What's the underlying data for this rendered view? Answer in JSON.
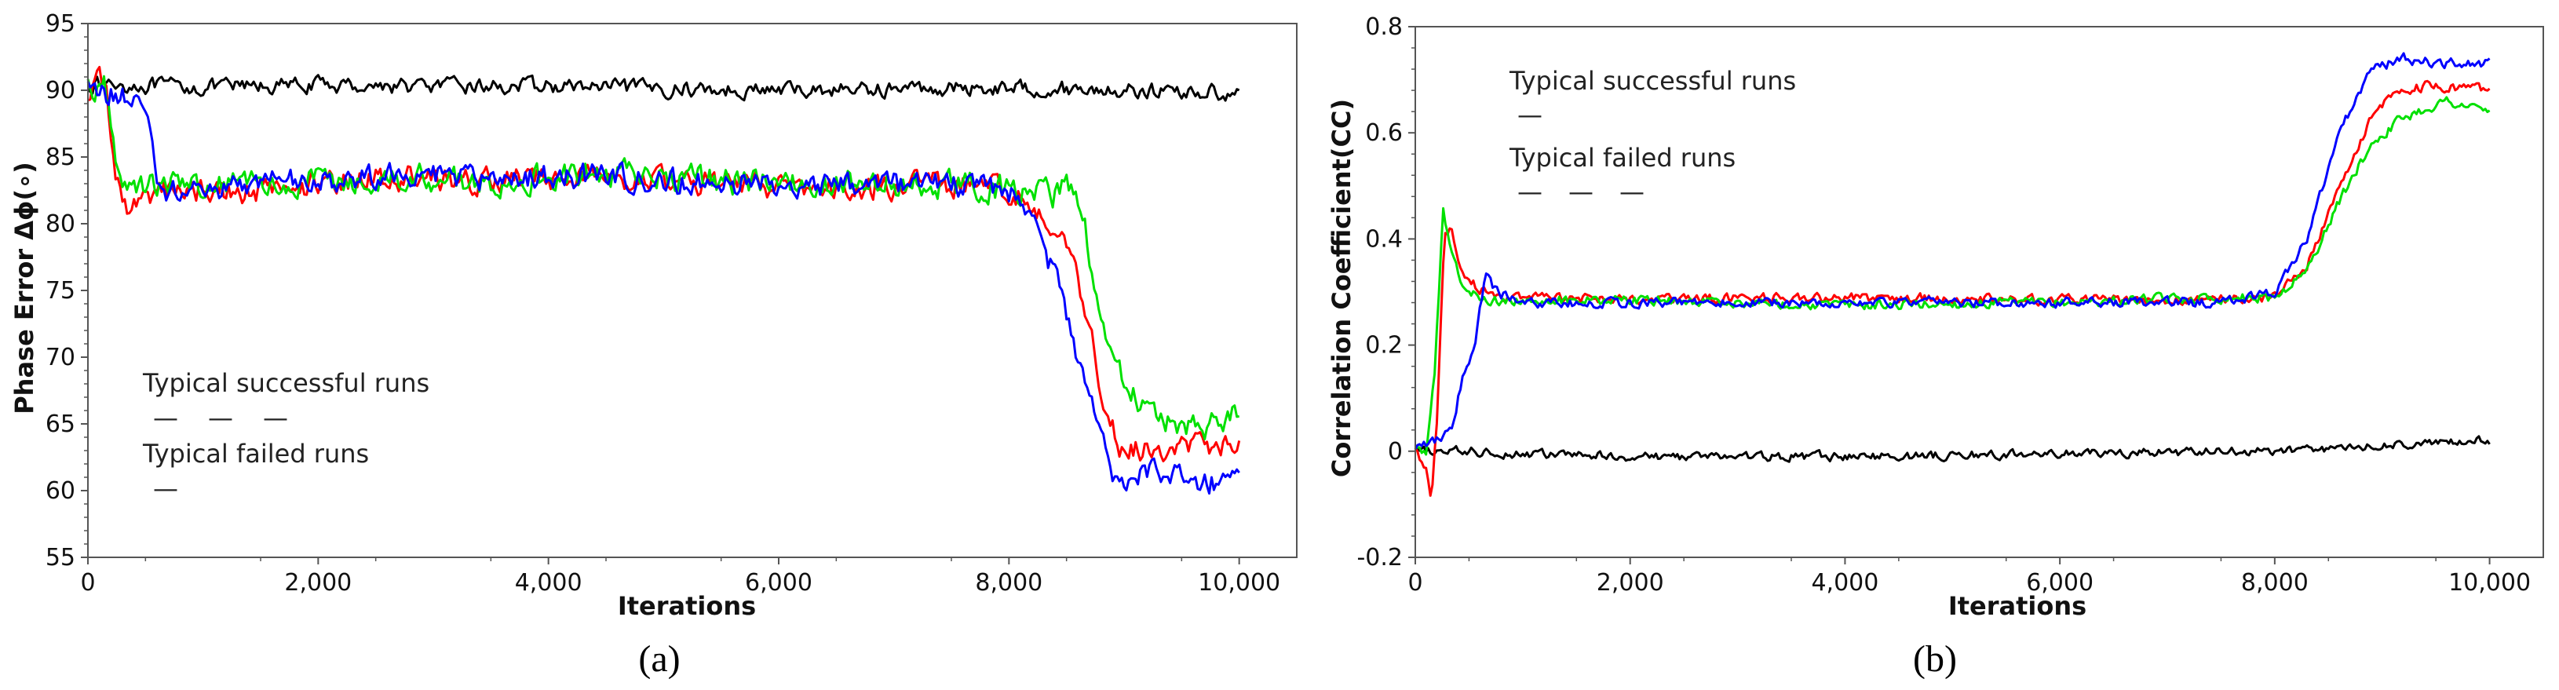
{
  "chart_data": [
    {
      "type": "line",
      "caption": "(a)",
      "xlabel": "Iterations",
      "ylabel": "Phase Error Δϕ(∘)",
      "xlim": [
        0,
        10500
      ],
      "ylim": [
        55,
        95
      ],
      "xticks": [
        0,
        2000,
        4000,
        6000,
        8000,
        10000
      ],
      "xtick_labels": [
        "0",
        "2,000",
        "4,000",
        "6,000",
        "8,000",
        "10,000"
      ],
      "yticks": [
        55,
        60,
        65,
        70,
        75,
        80,
        85,
        90,
        95
      ],
      "ytick_labels": [
        "55",
        "60",
        "65",
        "70",
        "75",
        "80",
        "85",
        "90",
        "95"
      ],
      "legend": {
        "successful_label": "Typical successful runs",
        "successful_marks": [
          "—",
          "—",
          "—"
        ],
        "failed_label": "Typical failed runs",
        "failed_mark": "—"
      },
      "series": [
        {
          "name": "failed-black",
          "color": "#000000",
          "noise": 0.55,
          "points": [
            [
              0,
              90.5
            ],
            [
              1000,
              90.2
            ],
            [
              2000,
              90.4
            ],
            [
              3000,
              90.3
            ],
            [
              4000,
              90.3
            ],
            [
              5000,
              90.1
            ],
            [
              6000,
              90.0
            ],
            [
              7000,
              90.1
            ],
            [
              8000,
              90.2
            ],
            [
              9000,
              90.0
            ],
            [
              10000,
              89.8
            ]
          ]
        },
        {
          "name": "successful-red",
          "color": "#ff0000",
          "noise": 0.9,
          "points": [
            [
              0,
              90
            ],
            [
              150,
              91
            ],
            [
              230,
              84
            ],
            [
              340,
              81
            ],
            [
              600,
              82.5
            ],
            [
              1500,
              82.5
            ],
            [
              2500,
              83.5
            ],
            [
              3500,
              83.2
            ],
            [
              4500,
              83.6
            ],
            [
              5500,
              83
            ],
            [
              6500,
              82.6
            ],
            [
              7500,
              83
            ],
            [
              8000,
              82.5
            ],
            [
              8400,
              80
            ],
            [
              8600,
              76
            ],
            [
              8800,
              68
            ],
            [
              8950,
              63.5
            ],
            [
              9200,
              63
            ],
            [
              9600,
              63.5
            ],
            [
              10000,
              63.2
            ]
          ]
        },
        {
          "name": "successful-green",
          "color": "#00e000",
          "noise": 1.0,
          "points": [
            [
              0,
              90
            ],
            [
              150,
              90.5
            ],
            [
              230,
              86
            ],
            [
              300,
              83
            ],
            [
              600,
              83
            ],
            [
              1500,
              83
            ],
            [
              2500,
              83.5
            ],
            [
              3500,
              83.2
            ],
            [
              4500,
              83.8
            ],
            [
              5500,
              83.2
            ],
            [
              6500,
              83
            ],
            [
              7500,
              83
            ],
            [
              8000,
              82.5
            ],
            [
              8400,
              82
            ],
            [
              8500,
              84
            ],
            [
              8650,
              80
            ],
            [
              8800,
              73
            ],
            [
              9000,
              68
            ],
            [
              9200,
              66
            ],
            [
              9500,
              65
            ],
            [
              9800,
              65
            ],
            [
              10000,
              66.5
            ]
          ]
        },
        {
          "name": "successful-blue",
          "color": "#0000ff",
          "noise": 0.9,
          "points": [
            [
              0,
              90
            ],
            [
              300,
              89.5
            ],
            [
              500,
              88.5
            ],
            [
              620,
              83
            ],
            [
              700,
              82.5
            ],
            [
              1500,
              83
            ],
            [
              2500,
              83.5
            ],
            [
              3500,
              83.5
            ],
            [
              4500,
              83.5
            ],
            [
              5500,
              83
            ],
            [
              6500,
              83
            ],
            [
              7500,
              82.8
            ],
            [
              8000,
              82.5
            ],
            [
              8200,
              80
            ],
            [
              8400,
              76
            ],
            [
              8600,
              70
            ],
            [
              8800,
              64
            ],
            [
              8900,
              60.5
            ],
            [
              9100,
              61.5
            ],
            [
              9500,
              61
            ],
            [
              10000,
              60.5
            ]
          ]
        }
      ]
    },
    {
      "type": "line",
      "caption": "(b)",
      "xlabel": "Iterations",
      "ylabel": "Correlation Coefficient(CC)",
      "xlim": [
        0,
        10500
      ],
      "ylim": [
        -0.2,
        0.8
      ],
      "xticks": [
        0,
        2000,
        4000,
        6000,
        8000,
        10000
      ],
      "xtick_labels": [
        "0",
        "2,000",
        "4,000",
        "6,000",
        "8,000",
        "10,000"
      ],
      "yticks": [
        -0.2,
        0,
        0.2,
        0.4,
        0.6,
        0.8
      ],
      "ytick_labels": [
        "-0.2",
        "0",
        "0.2",
        "0.4",
        "0.6",
        "0.8"
      ],
      "legend": {
        "successful_label": "Typical successful runs",
        "successful_mark": "—",
        "failed_label": "Typical failed runs",
        "failed_marks": [
          "—",
          "—",
          "—"
        ]
      },
      "series": [
        {
          "name": "successful-black",
          "color": "#000000",
          "noise": 0.008,
          "points": [
            [
              0,
              0.0
            ],
            [
              500,
              0.0
            ],
            [
              1000,
              -0.005
            ],
            [
              2000,
              -0.01
            ],
            [
              4000,
              -0.01
            ],
            [
              6000,
              -0.005
            ],
            [
              8000,
              0.0
            ],
            [
              9000,
              0.01
            ],
            [
              10000,
              0.02
            ]
          ]
        },
        {
          "name": "failed-red",
          "color": "#ff0000",
          "noise": 0.009,
          "points": [
            [
              0,
              0.0
            ],
            [
              100,
              -0.03
            ],
            [
              150,
              -0.1
            ],
            [
              200,
              0.05
            ],
            [
              270,
              0.4
            ],
            [
              330,
              0.42
            ],
            [
              450,
              0.33
            ],
            [
              700,
              0.29
            ],
            [
              2000,
              0.285
            ],
            [
              4000,
              0.29
            ],
            [
              6000,
              0.285
            ],
            [
              7500,
              0.285
            ],
            [
              8000,
              0.29
            ],
            [
              8300,
              0.35
            ],
            [
              8600,
              0.5
            ],
            [
              8900,
              0.63
            ],
            [
              9100,
              0.68
            ],
            [
              9500,
              0.69
            ],
            [
              10000,
              0.68
            ]
          ]
        },
        {
          "name": "failed-green",
          "color": "#00e000",
          "noise": 0.009,
          "points": [
            [
              0,
              0.0
            ],
            [
              100,
              0.0
            ],
            [
              180,
              0.15
            ],
            [
              260,
              0.45
            ],
            [
              330,
              0.38
            ],
            [
              450,
              0.31
            ],
            [
              700,
              0.285
            ],
            [
              2000,
              0.285
            ],
            [
              4000,
              0.275
            ],
            [
              6000,
              0.28
            ],
            [
              7500,
              0.29
            ],
            [
              8000,
              0.29
            ],
            [
              8300,
              0.34
            ],
            [
              8600,
              0.47
            ],
            [
              8900,
              0.58
            ],
            [
              9200,
              0.63
            ],
            [
              9600,
              0.66
            ],
            [
              10000,
              0.64
            ]
          ]
        },
        {
          "name": "failed-blue",
          "color": "#0000ff",
          "noise": 0.009,
          "points": [
            [
              0,
              0.0
            ],
            [
              200,
              0.02
            ],
            [
              350,
              0.05
            ],
            [
              450,
              0.15
            ],
            [
              550,
              0.2
            ],
            [
              650,
              0.33
            ],
            [
              750,
              0.3
            ],
            [
              1000,
              0.28
            ],
            [
              2000,
              0.28
            ],
            [
              4000,
              0.28
            ],
            [
              6000,
              0.28
            ],
            [
              7500,
              0.28
            ],
            [
              8000,
              0.3
            ],
            [
              8300,
              0.4
            ],
            [
              8600,
              0.6
            ],
            [
              8900,
              0.72
            ],
            [
              9200,
              0.74
            ],
            [
              9600,
              0.73
            ],
            [
              10000,
              0.73
            ]
          ]
        }
      ]
    }
  ]
}
